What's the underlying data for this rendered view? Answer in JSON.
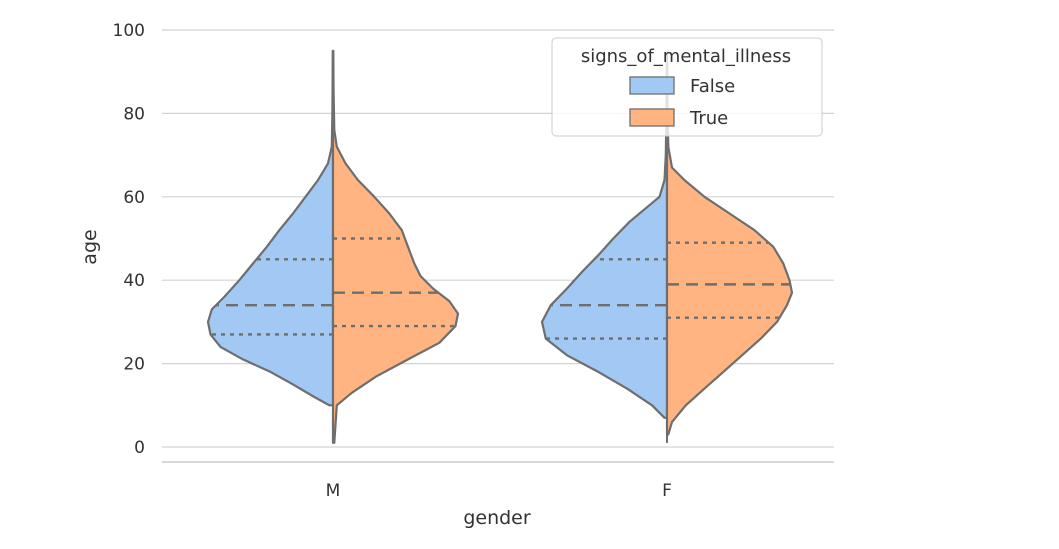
{
  "chart_data": {
    "type": "violin",
    "split": true,
    "xlabel": "gender",
    "ylabel": "age",
    "categories": [
      "M",
      "F"
    ],
    "ylim": [
      0,
      100
    ],
    "yticks": [
      0,
      20,
      40,
      60,
      80,
      100
    ],
    "grid": "y",
    "legend": {
      "title": "signs_of_mental_illness",
      "placement": "top-right",
      "entries": [
        {
          "label": "False",
          "color": "#a1c9f4"
        },
        {
          "label": "True",
          "color": "#ffb482"
        }
      ]
    },
    "series": [
      {
        "name": "False",
        "color": "#a1c9f4",
        "violins": [
          {
            "category": "M",
            "range": [
              10,
              95
            ],
            "quartiles": {
              "q1": 27,
              "median": 34,
              "q3": 45
            },
            "density": [
              [
                10,
                0.03
              ],
              [
                12,
                0.15
              ],
              [
                15,
                0.32
              ],
              [
                18,
                0.5
              ],
              [
                21,
                0.72
              ],
              [
                24,
                0.9
              ],
              [
                27,
                0.98
              ],
              [
                30,
                1.0
              ],
              [
                33,
                0.97
              ],
              [
                36,
                0.87
              ],
              [
                40,
                0.75
              ],
              [
                44,
                0.64
              ],
              [
                48,
                0.53
              ],
              [
                52,
                0.43
              ],
              [
                56,
                0.32
              ],
              [
                60,
                0.22
              ],
              [
                64,
                0.12
              ],
              [
                68,
                0.04
              ],
              [
                72,
                0.01
              ],
              [
                80,
                0.005
              ],
              [
                95,
                0.002
              ]
            ]
          },
          {
            "category": "F",
            "range": [
              7,
              92
            ],
            "quartiles": {
              "q1": 26,
              "median": 34,
              "q3": 45
            },
            "density": [
              [
                7,
                0.02
              ],
              [
                10,
                0.12
              ],
              [
                14,
                0.32
              ],
              [
                18,
                0.55
              ],
              [
                22,
                0.8
              ],
              [
                26,
                0.97
              ],
              [
                30,
                1.0
              ],
              [
                34,
                0.93
              ],
              [
                38,
                0.8
              ],
              [
                42,
                0.68
              ],
              [
                46,
                0.55
              ],
              [
                50,
                0.43
              ],
              [
                54,
                0.3
              ],
              [
                57,
                0.18
              ],
              [
                60,
                0.06
              ],
              [
                64,
                0.02
              ],
              [
                70,
                0.01
              ],
              [
                80,
                0.005
              ],
              [
                92,
                0.002
              ]
            ]
          }
        ]
      },
      {
        "name": "True",
        "color": "#ffb482",
        "violins": [
          {
            "category": "M",
            "range": [
              1,
              95
            ],
            "quartiles": {
              "q1": 29,
              "median": 37,
              "q3": 50
            },
            "density": [
              [
                1,
                0.01
              ],
              [
                10,
                0.03
              ],
              [
                13,
                0.15
              ],
              [
                17,
                0.35
              ],
              [
                21,
                0.6
              ],
              [
                25,
                0.85
              ],
              [
                29,
                0.98
              ],
              [
                32,
                1.0
              ],
              [
                35,
                0.93
              ],
              [
                38,
                0.8
              ],
              [
                41,
                0.7
              ],
              [
                44,
                0.65
              ],
              [
                48,
                0.6
              ],
              [
                52,
                0.55
              ],
              [
                56,
                0.45
              ],
              [
                60,
                0.33
              ],
              [
                64,
                0.2
              ],
              [
                68,
                0.1
              ],
              [
                72,
                0.03
              ],
              [
                76,
                0.01
              ],
              [
                85,
                0.005
              ],
              [
                95,
                0.002
              ]
            ]
          },
          {
            "category": "F",
            "range": [
              3,
              92
            ],
            "quartiles": {
              "q1": 31,
              "median": 39,
              "q3": 49
            },
            "density": [
              [
                3,
                0.01
              ],
              [
                6,
                0.04
              ],
              [
                10,
                0.15
              ],
              [
                14,
                0.3
              ],
              [
                18,
                0.45
              ],
              [
                22,
                0.6
              ],
              [
                26,
                0.75
              ],
              [
                30,
                0.88
              ],
              [
                34,
                0.96
              ],
              [
                37,
                1.0
              ],
              [
                40,
                0.98
              ],
              [
                44,
                0.93
              ],
              [
                48,
                0.85
              ],
              [
                52,
                0.7
              ],
              [
                56,
                0.5
              ],
              [
                60,
                0.3
              ],
              [
                64,
                0.14
              ],
              [
                67,
                0.04
              ],
              [
                72,
                0.01
              ],
              [
                80,
                0.005
              ],
              [
                92,
                0.002
              ]
            ]
          }
        ]
      }
    ]
  }
}
